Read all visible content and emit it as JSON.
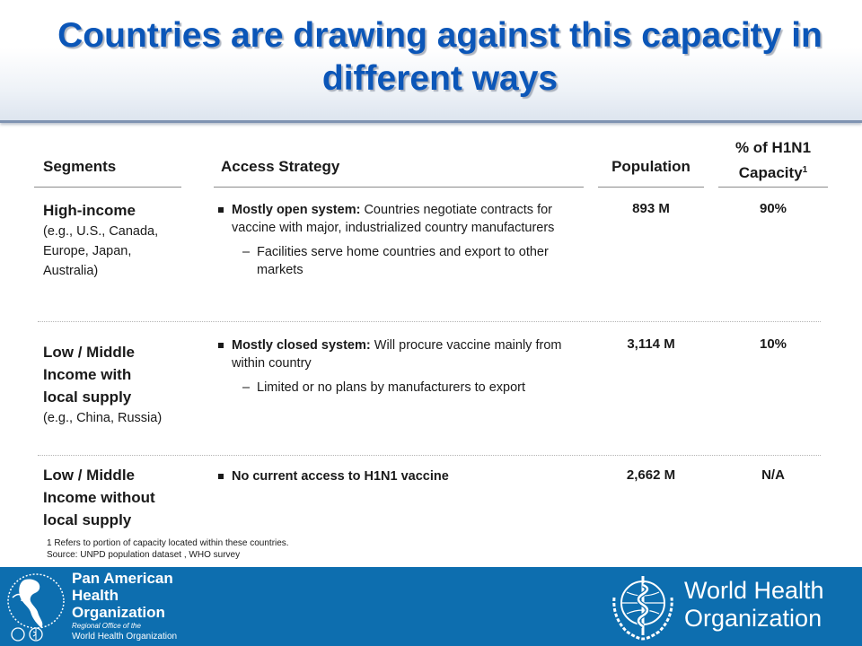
{
  "slide": {
    "title": "Countries are drawing against this capacity in different ways"
  },
  "table": {
    "headers": {
      "segments": "Segments",
      "access": "Access Strategy",
      "population": "Population",
      "capacity_line1": "% of H1N1",
      "capacity_line2": "Capacity",
      "capacity_sup": "1"
    },
    "rows": [
      {
        "segment_lines": [
          "High-income"
        ],
        "segment_example_lines": [
          "(e.g., U.S., Canada,",
          "Europe, Japan,",
          "Australia)"
        ],
        "bullet_bold": "Mostly open system:",
        "bullet_text": " Countries negotiate contracts for vaccine with major, industrialized country manufacturers",
        "sub_dash": "–",
        "sub_text": "Facilities serve home countries and export to other markets",
        "population": "893 M",
        "capacity": "90%"
      },
      {
        "segment_lines": [
          "Low / Middle",
          "Income with",
          "local supply"
        ],
        "segment_example_lines": [
          "(e.g., China, Russia)"
        ],
        "bullet_bold": "Mostly closed system:",
        "bullet_text": " Will procure vaccine mainly from within country",
        "sub_dash": "–",
        "sub_text": "Limited or no plans by manufacturers to export",
        "population": "3,114 M",
        "capacity": "10%"
      },
      {
        "segment_lines": [
          "Low / Middle",
          "Income without",
          "local supply"
        ],
        "bullet_bold": "No current access to H1N1 vaccine",
        "population": "2,662 M",
        "capacity": "N/A"
      }
    ]
  },
  "footnotes": {
    "note1": "1 Refers to portion of capacity located within these countries.",
    "source": "Source: UNPD population dataset , WHO survey"
  },
  "footer": {
    "paho_line1": "Pan American",
    "paho_line2": "Health",
    "paho_line3": "Organization",
    "paho_sub1": "Regional Office of the",
    "paho_sub2": "World Health Organization",
    "who_line1": "World Health",
    "who_line2": "Organization",
    "paho_logo_icon": "paho-globe-logo-icon",
    "who_logo_icon": "who-emblem-icon"
  },
  "colors": {
    "title": "#0b56b8",
    "footer_band": "#0d6eaf"
  }
}
